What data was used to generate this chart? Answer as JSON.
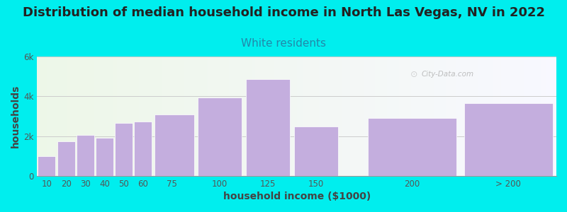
{
  "title": "Distribution of median household income in North Las Vegas, NV in 2022",
  "subtitle": "White residents",
  "xlabel": "household income ($1000)",
  "ylabel": "households",
  "bg_color": "#00EEEE",
  "bar_color": "#C4AEDE",
  "categories": [
    "10",
    "20",
    "30",
    "40",
    "50",
    "60",
    "75",
    "100",
    "125",
    "150",
    "200",
    "> 200"
  ],
  "values": [
    1000,
    1750,
    2050,
    1900,
    2650,
    2750,
    3100,
    3950,
    4850,
    2500,
    2900,
    3650
  ],
  "bar_lefts": [
    5,
    15,
    25,
    35,
    45,
    55,
    65,
    87.5,
    112.5,
    137.5,
    175,
    225
  ],
  "bar_widths": [
    10,
    10,
    10,
    10,
    10,
    10,
    22.5,
    25,
    25,
    25,
    50,
    50
  ],
  "xlim": [
    5,
    275
  ],
  "xtick_positions": [
    10,
    20,
    30,
    40,
    50,
    60,
    75,
    100,
    125,
    150,
    200,
    250
  ],
  "xtick_labels": [
    "10",
    "20",
    "30",
    "40",
    "50",
    "60",
    "75",
    "100",
    "125",
    "150",
    "200",
    "> 200"
  ],
  "ylim": [
    0,
    6000
  ],
  "yticks": [
    0,
    2000,
    4000,
    6000
  ],
  "ytick_labels": [
    "0",
    "2k",
    "4k",
    "6k"
  ],
  "title_fontsize": 13,
  "subtitle_fontsize": 11,
  "label_fontsize": 10,
  "tick_fontsize": 8.5,
  "watermark": "City-Data.com",
  "title_color": "#222222",
  "subtitle_color": "#2288AA",
  "label_color": "#444444",
  "tick_color": "#555555",
  "grid_color": "#CCCCCC",
  "spine_color": "#999999"
}
